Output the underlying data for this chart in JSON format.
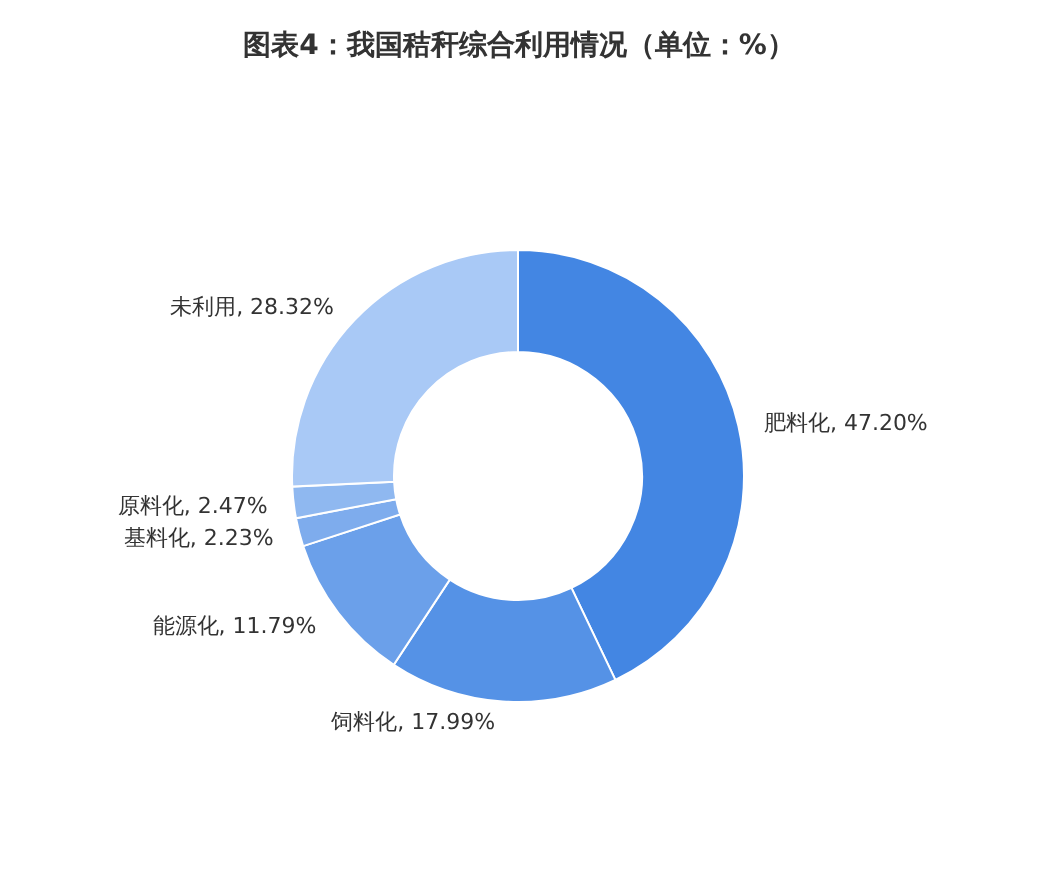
{
  "chart_data": {
    "type": "donut",
    "title": "图表4：我国秸秆综合利用情况（单位：%）",
    "categories": [
      "肥料化",
      "饲料化",
      "能源化",
      "基料化",
      "原料化",
      "未利用"
    ],
    "values": [
      47.2,
      17.99,
      11.79,
      2.23,
      2.47,
      28.32
    ],
    "value_labels": [
      "47.20%",
      "17.99%",
      "11.79%",
      "2.23%",
      "2.47%",
      "28.32%"
    ],
    "colors": [
      "#4386e3",
      "#5592e6",
      "#6ba0ea",
      "#7eaced",
      "#8fb8f0",
      "#a9c9f6"
    ],
    "legend": false
  }
}
